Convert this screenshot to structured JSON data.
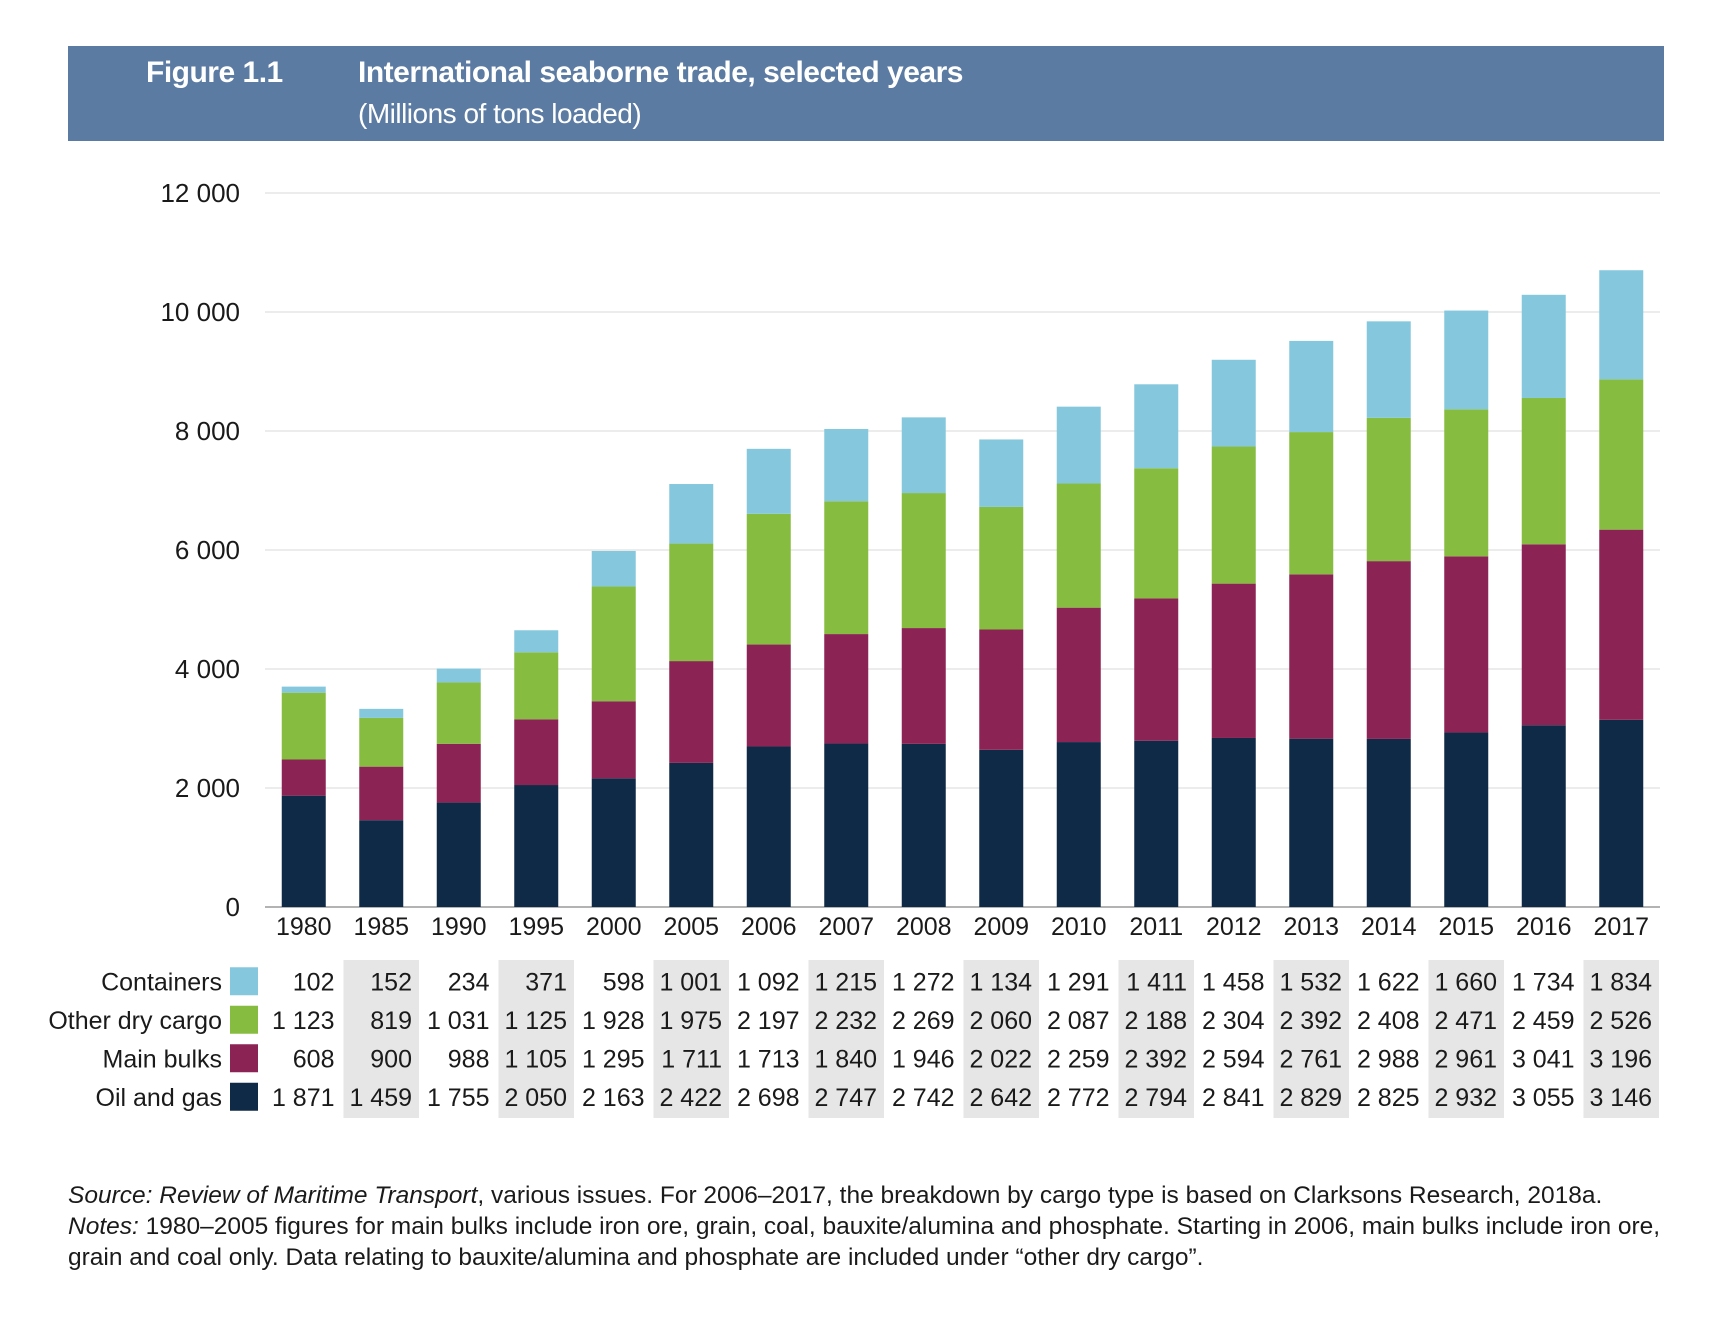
{
  "header": {
    "figure_label": "Figure 1.1",
    "title": "International seaborne trade, selected years",
    "subtitle": "(Millions of tons loaded)"
  },
  "chart_data": {
    "type": "bar",
    "stacked": true,
    "title": "International seaborne trade, selected years",
    "subtitle": "(Millions of tons loaded)",
    "categories": [
      "1980",
      "1985",
      "1990",
      "1995",
      "2000",
      "2005",
      "2006",
      "2007",
      "2008",
      "2009",
      "2010",
      "2011",
      "2012",
      "2013",
      "2014",
      "2015",
      "2016",
      "2017"
    ],
    "ylim": [
      0,
      12000
    ],
    "yticks": [
      0,
      2000,
      4000,
      6000,
      8000,
      10000,
      12000
    ],
    "ytick_labels": [
      "0",
      "2 000",
      "4 000",
      "6 000",
      "8 000",
      "10 000",
      "12 000"
    ],
    "grid": true,
    "legend_placement": "left of data table",
    "series": [
      {
        "name": "Oil and gas",
        "color": "#0e2a47",
        "values": [
          1871,
          1459,
          1755,
          2050,
          2163,
          2422,
          2698,
          2747,
          2742,
          2642,
          2772,
          2794,
          2841,
          2829,
          2825,
          2932,
          3055,
          3146
        ],
        "labels": [
          "1 871",
          "1 459",
          "1 755",
          "2 050",
          "2 163",
          "2 422",
          "2 698",
          "2 747",
          "2 742",
          "2 642",
          "2 772",
          "2 794",
          "2 841",
          "2 829",
          "2 825",
          "2 932",
          "3 055",
          "3 146"
        ]
      },
      {
        "name": "Main bulks",
        "color": "#8b2354",
        "values": [
          608,
          900,
          988,
          1105,
          1295,
          1711,
          1713,
          1840,
          1946,
          2022,
          2259,
          2392,
          2594,
          2761,
          2988,
          2961,
          3041,
          3196
        ],
        "labels": [
          "608",
          "900",
          "988",
          "1 105",
          "1 295",
          "1 711",
          "1 713",
          "1 840",
          "1 946",
          "2 022",
          "2 259",
          "2 392",
          "2 594",
          "2 761",
          "2 988",
          "2 961",
          "3 041",
          "3 196"
        ]
      },
      {
        "name": "Other dry cargo",
        "color": "#86bd40",
        "values": [
          1123,
          819,
          1031,
          1125,
          1928,
          1975,
          2197,
          2232,
          2269,
          2060,
          2087,
          2188,
          2304,
          2392,
          2408,
          2471,
          2459,
          2526
        ],
        "labels": [
          "1 123",
          "819",
          "1 031",
          "1 125",
          "1 928",
          "1 975",
          "2 197",
          "2 232",
          "2 269",
          "2 060",
          "2 087",
          "2 188",
          "2 304",
          "2 392",
          "2 408",
          "2 471",
          "2 459",
          "2 526"
        ]
      },
      {
        "name": "Containers",
        "color": "#85c8dd",
        "values": [
          102,
          152,
          234,
          371,
          598,
          1001,
          1092,
          1215,
          1272,
          1134,
          1291,
          1411,
          1458,
          1532,
          1622,
          1660,
          1734,
          1834
        ],
        "labels": [
          "102",
          "152",
          "234",
          "371",
          "598",
          "1 001",
          "1 092",
          "1 215",
          "1 272",
          "1 134",
          "1 291",
          "1 411",
          "1 458",
          "1 532",
          "1 622",
          "1 660",
          "1 734",
          "1 834"
        ]
      }
    ],
    "table_row_order": [
      "Containers",
      "Other dry cargo",
      "Main bulks",
      "Oil and gas"
    ]
  },
  "notes": {
    "source_label": "Source:",
    "source_pub": "Review of Maritime Transport",
    "source_text": ", various issues. For 2006–2017, the breakdown by cargo type is based on Clarksons Research, 2018a.",
    "notes_label": "Notes:",
    "notes_text": " 1980–2005 figures for main bulks include iron ore, grain, coal, bauxite/alumina and phosphate. Starting in 2006, main bulks include iron ore, grain and coal only. Data relating to bauxite/alumina and phosphate are included under “other dry cargo”."
  }
}
